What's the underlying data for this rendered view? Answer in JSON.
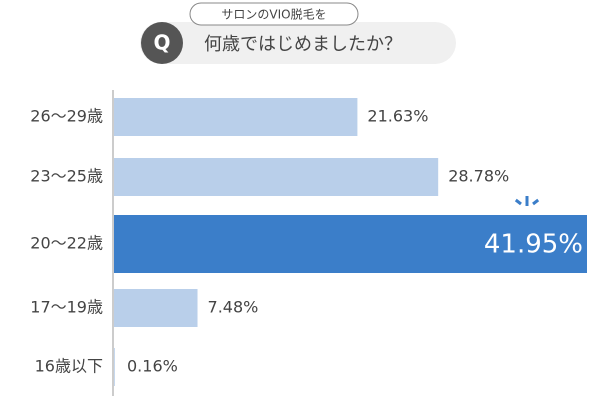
{
  "chart_data": {
    "type": "bar",
    "orientation": "horizontal",
    "question_badge": "Q",
    "subtitle": "サロンのVIO脱毛を",
    "title": "何歳ではじめましたか？",
    "categories": [
      "26〜29歳",
      "23〜25歳",
      "20〜22歳",
      "17〜19歳",
      "16歳以下"
    ],
    "values": [
      21.63,
      28.78,
      41.95,
      7.48,
      0.16
    ],
    "value_labels": [
      "21.63%",
      "28.78%",
      "41.95%",
      "7.48%",
      "0.16%"
    ],
    "colors": [
      "#b9cfea",
      "#b9cfea",
      "#3b7ec9",
      "#b9cfea",
      "#b9cfea"
    ],
    "highlight_index": 2
  }
}
